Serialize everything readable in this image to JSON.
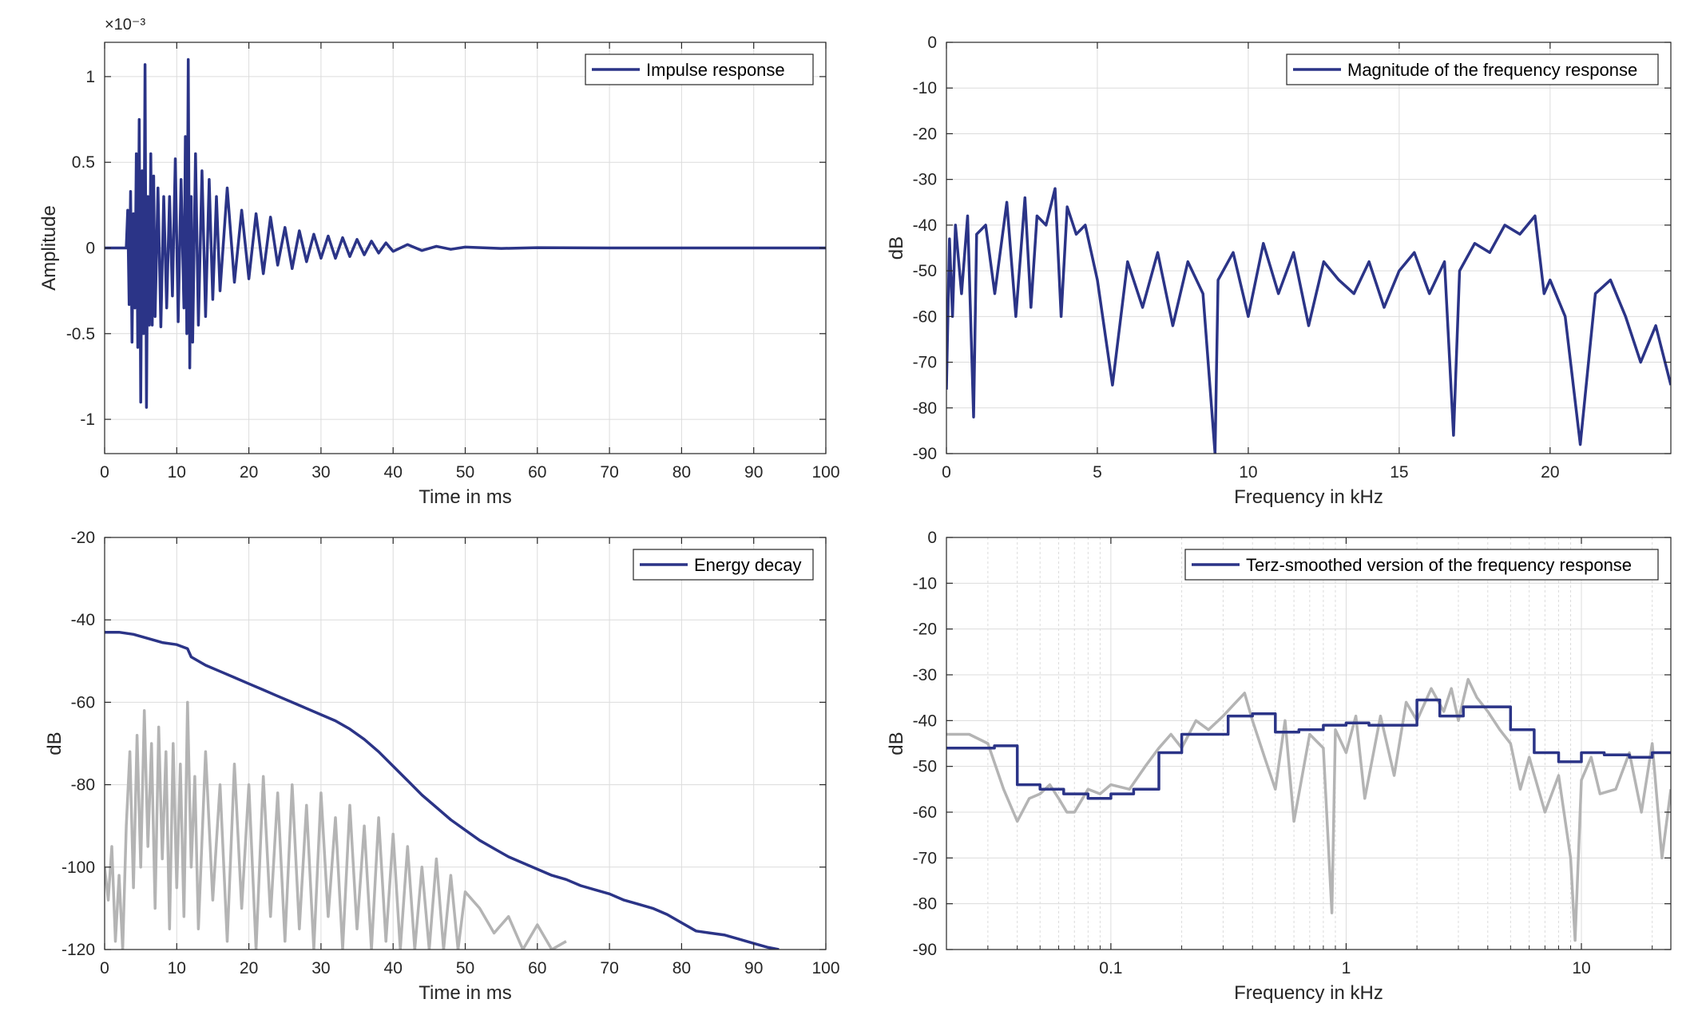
{
  "colors": {
    "primary": "#2b3487",
    "secondary": "#b4b4b4",
    "grid": "#dcdcdc",
    "axis": "#262626"
  },
  "chart_data": [
    {
      "id": "impulse",
      "type": "line",
      "xlabel": "Time in ms",
      "ylabel": "Amplitude",
      "exponent_label": "×10⁻³",
      "xlim": [
        0,
        100
      ],
      "ylim": [
        -1.2,
        1.2
      ],
      "xticks": [
        0,
        10,
        20,
        30,
        40,
        50,
        60,
        70,
        80,
        90,
        100
      ],
      "xtick_labels": [
        "0",
        "10",
        "20",
        "30",
        "40",
        "50",
        "60",
        "70",
        "80",
        "90",
        "100"
      ],
      "yticks": [
        -1,
        -0.5,
        0,
        0.5,
        1
      ],
      "ytick_labels": [
        "-1",
        "-0.5",
        "0",
        "0.5",
        "1"
      ],
      "grid": true,
      "legend": "top-right",
      "series": [
        {
          "name": "Impulse response",
          "style": "primary",
          "x": [
            0,
            2,
            3.0,
            3.2,
            3.4,
            3.6,
            3.8,
            4.0,
            4.2,
            4.4,
            4.6,
            4.8,
            5.0,
            5.2,
            5.4,
            5.6,
            5.8,
            6.0,
            6.2,
            6.4,
            6.6,
            6.8,
            7.0,
            7.4,
            7.8,
            8.2,
            8.6,
            9.0,
            9.4,
            9.8,
            10.2,
            10.6,
            11.0,
            11.2,
            11.4,
            11.6,
            11.8,
            12.0,
            12.2,
            12.6,
            13.0,
            13.5,
            14.0,
            14.5,
            15.0,
            15.5,
            16.0,
            17.0,
            18.0,
            19.0,
            20.0,
            21.0,
            22.0,
            23.0,
            24.0,
            25.0,
            26.0,
            27.0,
            28.0,
            29.0,
            30.0,
            31.0,
            32.0,
            33.0,
            34.0,
            35.0,
            36.0,
            37.0,
            38.0,
            39.0,
            40.0,
            42.0,
            44.0,
            46.0,
            48.0,
            50.0,
            55.0,
            60.0,
            70.0,
            80.0,
            90.0,
            100.0
          ],
          "y": [
            0,
            0,
            0.0,
            0.22,
            -0.33,
            0.33,
            -0.55,
            0.2,
            -0.35,
            0.55,
            -0.58,
            0.75,
            -0.9,
            0.45,
            -0.5,
            1.07,
            -0.93,
            0.3,
            -0.45,
            0.55,
            -0.45,
            0.42,
            -0.4,
            0.35,
            -0.46,
            0.3,
            -0.35,
            0.3,
            -0.28,
            0.52,
            -0.43,
            0.4,
            -0.35,
            0.65,
            -0.5,
            1.1,
            -0.7,
            0.3,
            -0.55,
            0.55,
            -0.45,
            0.45,
            -0.4,
            0.4,
            -0.3,
            0.3,
            -0.25,
            0.35,
            -0.2,
            0.22,
            -0.18,
            0.2,
            -0.15,
            0.18,
            -0.1,
            0.12,
            -0.12,
            0.1,
            -0.08,
            0.08,
            -0.06,
            0.07,
            -0.06,
            0.06,
            -0.05,
            0.05,
            -0.04,
            0.04,
            -0.03,
            0.03,
            -0.02,
            0.02,
            -0.015,
            0.01,
            -0.008,
            0.005,
            -0.003,
            0.002,
            0,
            0,
            0,
            0
          ]
        }
      ]
    },
    {
      "id": "magnitude",
      "type": "line",
      "xlabel": "Frequency in kHz",
      "ylabel": "dB",
      "xlim": [
        0,
        24
      ],
      "ylim": [
        -90,
        0
      ],
      "xticks": [
        0,
        5,
        10,
        15,
        20
      ],
      "xtick_labels": [
        "0",
        "5",
        "10",
        "15",
        "20"
      ],
      "yticks": [
        0,
        -10,
        -20,
        -30,
        -40,
        -50,
        -60,
        -70,
        -80,
        -90
      ],
      "ytick_labels": [
        "0",
        "-10",
        "-20",
        "-30",
        "-40",
        "-50",
        "-60",
        "-70",
        "-80",
        "-90"
      ],
      "grid": true,
      "legend": "top-right",
      "series": [
        {
          "name": "Magnitude of the frequency response",
          "style": "primary",
          "x": [
            0,
            0.1,
            0.2,
            0.3,
            0.5,
            0.7,
            0.9,
            1.0,
            1.3,
            1.6,
            2.0,
            2.3,
            2.6,
            2.8,
            3.0,
            3.3,
            3.6,
            3.8,
            4.0,
            4.3,
            4.6,
            5.0,
            5.5,
            6.0,
            6.5,
            7.0,
            7.5,
            8.0,
            8.5,
            8.9,
            9.0,
            9.5,
            10.0,
            10.5,
            11.0,
            11.5,
            12.0,
            12.5,
            13.0,
            13.5,
            14.0,
            14.5,
            15.0,
            15.5,
            16.0,
            16.5,
            16.8,
            17.0,
            17.5,
            18.0,
            18.5,
            19.0,
            19.5,
            19.8,
            20.0,
            20.5,
            21.0,
            21.5,
            22.0,
            22.5,
            23.0,
            23.5,
            24.0
          ],
          "y": [
            -76,
            -43,
            -60,
            -40,
            -55,
            -38,
            -82,
            -42,
            -40,
            -55,
            -35,
            -60,
            -34,
            -58,
            -38,
            -40,
            -32,
            -60,
            -36,
            -42,
            -40,
            -52,
            -75,
            -48,
            -58,
            -46,
            -62,
            -48,
            -55,
            -90,
            -52,
            -46,
            -60,
            -44,
            -55,
            -46,
            -62,
            -48,
            -52,
            -55,
            -48,
            -58,
            -50,
            -46,
            -55,
            -48,
            -86,
            -50,
            -44,
            -46,
            -40,
            -42,
            -38,
            -55,
            -52,
            -60,
            -88,
            -55,
            -52,
            -60,
            -70,
            -62,
            -75
          ]
        }
      ]
    },
    {
      "id": "energy",
      "type": "line",
      "xlabel": "Time in ms",
      "ylabel": "dB",
      "xlim": [
        0,
        100
      ],
      "ylim": [
        -120,
        -20
      ],
      "xticks": [
        0,
        10,
        20,
        30,
        40,
        50,
        60,
        70,
        80,
        90,
        100
      ],
      "xtick_labels": [
        "0",
        "10",
        "20",
        "30",
        "40",
        "50",
        "60",
        "70",
        "80",
        "90",
        "100"
      ],
      "yticks": [
        -20,
        -40,
        -60,
        -80,
        -100,
        -120
      ],
      "ytick_labels": [
        "-20",
        "-40",
        "-60",
        "-80",
        "-100",
        "-120"
      ],
      "grid": true,
      "legend": "top-right",
      "series": [
        {
          "name": "Energy decay",
          "style": "primary",
          "x": [
            0,
            2,
            4,
            6,
            8,
            10,
            11.5,
            12,
            14,
            16,
            18,
            20,
            22,
            24,
            26,
            28,
            30,
            32,
            34,
            36,
            38,
            40,
            42,
            44,
            46,
            48,
            50,
            52,
            54,
            56,
            58,
            60,
            62,
            64,
            66,
            68,
            70,
            72,
            74,
            76,
            78,
            80,
            82,
            84,
            86,
            88,
            90,
            92,
            93.5
          ],
          "y": [
            -43,
            -43,
            -43.5,
            -44.5,
            -45.5,
            -46,
            -47,
            -49,
            -51,
            -52.5,
            -54,
            -55.5,
            -57,
            -58.5,
            -60,
            -61.5,
            -63,
            -64.5,
            -66.5,
            -69,
            -72,
            -75.5,
            -79,
            -82.5,
            -85.5,
            -88.5,
            -91,
            -93.5,
            -95.5,
            -97.5,
            -99,
            -100.5,
            -102,
            -103,
            -104.5,
            -105.5,
            -106.5,
            -108,
            -109,
            -110,
            -111.5,
            -113.5,
            -115.5,
            -116,
            -116.5,
            -117.5,
            -118.5,
            -119.5,
            -120
          ]
        },
        {
          "style": "secondary",
          "x": [
            0,
            0.5,
            1.0,
            1.5,
            2.0,
            2.5,
            3.0,
            3.5,
            4.0,
            4.5,
            5.0,
            5.5,
            6.0,
            6.5,
            7.0,
            7.5,
            8.0,
            8.5,
            9.0,
            9.5,
            10.0,
            10.5,
            11.0,
            11.5,
            12.0,
            12.5,
            13.0,
            14.0,
            15.0,
            16.0,
            17.0,
            18.0,
            19.0,
            20.0,
            21.0,
            22.0,
            23.0,
            24.0,
            25.0,
            26.0,
            27.0,
            28.0,
            29.0,
            30.0,
            31.0,
            32.0,
            33.0,
            34.0,
            35.0,
            36.0,
            37.0,
            38.0,
            39.0,
            40.0,
            41.0,
            42.0,
            43.0,
            44.0,
            45.0,
            46.0,
            47.0,
            48.0,
            49.0,
            50.0,
            52.0,
            54.0,
            56.0,
            58.0,
            60.0,
            62.0,
            64.0
          ],
          "y": [
            -100,
            -108,
            -95,
            -118,
            -102,
            -120,
            -90,
            -72,
            -105,
            -68,
            -100,
            -62,
            -95,
            -70,
            -110,
            -66,
            -98,
            -72,
            -115,
            -70,
            -105,
            -75,
            -112,
            -60,
            -100,
            -78,
            -115,
            -72,
            -108,
            -80,
            -118,
            -75,
            -110,
            -80,
            -120,
            -78,
            -112,
            -82,
            -118,
            -80,
            -115,
            -85,
            -120,
            -82,
            -112,
            -88,
            -120,
            -85,
            -115,
            -90,
            -120,
            -88,
            -118,
            -92,
            -120,
            -95,
            -120,
            -100,
            -120,
            -98,
            -120,
            -102,
            -120,
            -106,
            -110,
            -116,
            -112,
            -120,
            -114,
            -120,
            -118
          ]
        }
      ]
    },
    {
      "id": "terz",
      "type": "line",
      "xscale": "log",
      "xlabel": "Frequency in kHz",
      "ylabel": "dB",
      "xlim": [
        0.02,
        24
      ],
      "ylim": [
        -90,
        0
      ],
      "xticks": [
        0.1,
        1,
        10
      ],
      "xtick_labels": [
        "0.1",
        "1",
        "10"
      ],
      "yticks": [
        0,
        -10,
        -20,
        -30,
        -40,
        -50,
        -60,
        -70,
        -80,
        -90
      ],
      "ytick_labels": [
        "0",
        "-10",
        "-20",
        "-30",
        "-40",
        "-50",
        "-60",
        "-70",
        "-80",
        "-90"
      ],
      "grid": true,
      "legend": "top-right",
      "series": [
        {
          "style": "secondary",
          "x": [
            0.02,
            0.025,
            0.03,
            0.035,
            0.04,
            0.045,
            0.05,
            0.055,
            0.06,
            0.065,
            0.07,
            0.08,
            0.09,
            0.1,
            0.12,
            0.14,
            0.16,
            0.18,
            0.2,
            0.23,
            0.26,
            0.3,
            0.34,
            0.37,
            0.4,
            0.45,
            0.5,
            0.55,
            0.6,
            0.7,
            0.8,
            0.87,
            0.9,
            1.0,
            1.1,
            1.2,
            1.4,
            1.6,
            1.8,
            2.0,
            2.3,
            2.6,
            2.8,
            3.0,
            3.3,
            3.6,
            4.0,
            4.5,
            5.0,
            5.5,
            6.0,
            7.0,
            8.0,
            9.0,
            9.4,
            10.0,
            11.0,
            12.0,
            14.0,
            16.0,
            18.0,
            20.0,
            22.0,
            24.0
          ],
          "y": [
            -43,
            -43,
            -45,
            -55,
            -62,
            -57,
            -56,
            -54,
            -57,
            -60,
            -60,
            -55,
            -56,
            -54,
            -55,
            -50,
            -46,
            -43,
            -46,
            -40,
            -42,
            -39,
            -36,
            -34,
            -40,
            -48,
            -55,
            -40,
            -62,
            -43,
            -46,
            -82,
            -42,
            -47,
            -39,
            -57,
            -39,
            -52,
            -36,
            -40,
            -33,
            -38,
            -33,
            -40,
            -31,
            -35,
            -38,
            -42,
            -45,
            -55,
            -48,
            -60,
            -52,
            -70,
            -88,
            -53,
            -48,
            -56,
            -55,
            -47,
            -60,
            -45,
            -70,
            -55
          ]
        },
        {
          "name": "Terz-smoothed version of the frequency response",
          "style": "primary",
          "step": true,
          "x": [
            0.02,
            0.032,
            0.04,
            0.05,
            0.063,
            0.08,
            0.1,
            0.125,
            0.16,
            0.2,
            0.25,
            0.315,
            0.4,
            0.5,
            0.63,
            0.8,
            1.0,
            1.25,
            1.6,
            2.0,
            2.5,
            3.15,
            4.0,
            5.0,
            6.3,
            8.0,
            10.0,
            12.5,
            16.0,
            20.0,
            24.0
          ],
          "y": [
            -46,
            -45.5,
            -54,
            -55,
            -56,
            -57,
            -56,
            -55,
            -47,
            -43,
            -43,
            -39,
            -38.5,
            -42.5,
            -42,
            -41,
            -40.5,
            -41,
            -41,
            -35.5,
            -39,
            -37,
            -37,
            -42,
            -47,
            -49,
            -47,
            -47.5,
            -48,
            -47,
            -47
          ]
        }
      ]
    }
  ]
}
